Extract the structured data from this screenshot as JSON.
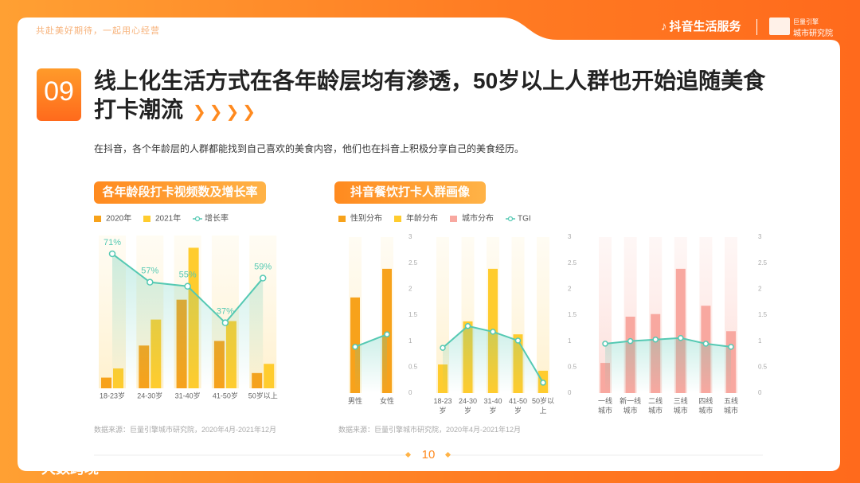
{
  "header": {
    "tagline": "共赴美好期待，一起用心经营",
    "brand": "抖音生活服务",
    "partner_top": "巨量引擎",
    "partner_bottom": "城市研究院"
  },
  "headline": {
    "number": "09",
    "title": "线上化生活方式在各年龄层均有渗透，50岁以上人群也开始追随美食打卡潮流",
    "subtitle": "在抖音，各个年龄层的人群都能找到自己喜欢的美食内容，他们也在抖音上积极分享自己的美食经历。"
  },
  "footer": {
    "page": "10",
    "watermark": "大数跨境"
  },
  "chart_data": [
    {
      "type": "bar",
      "title": "各年龄段打卡视频数及增长率",
      "categories": [
        "18-23岁",
        "24-30岁",
        "31-40岁",
        "41-50岁",
        "50岁以上"
      ],
      "ylim": [
        0,
        100
      ],
      "y2lim": [
        0,
        80
      ],
      "series": [
        {
          "name": "2020年",
          "color": "#f7a21b",
          "values": [
            7,
            28,
            58,
            31,
            10
          ]
        },
        {
          "name": "2021年",
          "color": "#ffcc2e",
          "values": [
            13,
            45,
            92,
            44,
            16
          ]
        },
        {
          "name": "增长率",
          "color": "#55c9b3",
          "type": "line",
          "axis": "y2",
          "values": [
            71,
            57,
            55,
            37,
            59
          ],
          "value_labels": [
            "71%",
            "57%",
            "55%",
            "37%",
            "59%"
          ]
        }
      ],
      "source": "数据来源：巨量引擎城市研究院，2020年4月-2021年12月"
    },
    {
      "type": "bar",
      "title": "抖音餐饮打卡人群画像",
      "legend": [
        {
          "name": "性别分布",
          "color": "#f7a21b"
        },
        {
          "name": "年龄分布",
          "color": "#ffcc2e"
        },
        {
          "name": "城市分布",
          "color": "#f8a8a0"
        },
        {
          "name": "TGI",
          "color": "#55c9b3"
        }
      ],
      "panels": [
        {
          "categories": [
            "男性",
            "女性"
          ],
          "values": [
            1.84,
            2.39
          ],
          "tgi": [
            0.89,
            1.13
          ],
          "ylim": [
            0,
            3
          ],
          "yticks": [
            0,
            0.5,
            1,
            1.5,
            2,
            2.5,
            3
          ]
        },
        {
          "categories": [
            "18-23岁",
            "24-30岁",
            "31-40岁",
            "41-50岁",
            "50岁以上"
          ],
          "values": [
            0.55,
            1.38,
            2.39,
            1.13,
            0.43
          ],
          "tgi": [
            0.87,
            1.29,
            1.18,
            1.01,
            0.2
          ],
          "ylim": [
            0,
            3
          ],
          "yticks": [
            0,
            0.5,
            1,
            1.5,
            2,
            2.5,
            3
          ]
        },
        {
          "categories": [
            "一线城市",
            "新一线城市",
            "二线城市",
            "三线城市",
            "四线城市",
            "五线城市"
          ],
          "values": [
            0.58,
            1.47,
            1.52,
            2.39,
            1.68,
            1.19
          ],
          "tgi": [
            0.95,
            1.0,
            1.03,
            1.06,
            0.95,
            0.89
          ],
          "ylim": [
            0,
            3
          ],
          "yticks": [
            0,
            0.5,
            1,
            1.5,
            2,
            2.5,
            3
          ]
        }
      ],
      "source": "数据来源：巨量引擎城市研究院，2020年4月-2021年12月"
    }
  ]
}
